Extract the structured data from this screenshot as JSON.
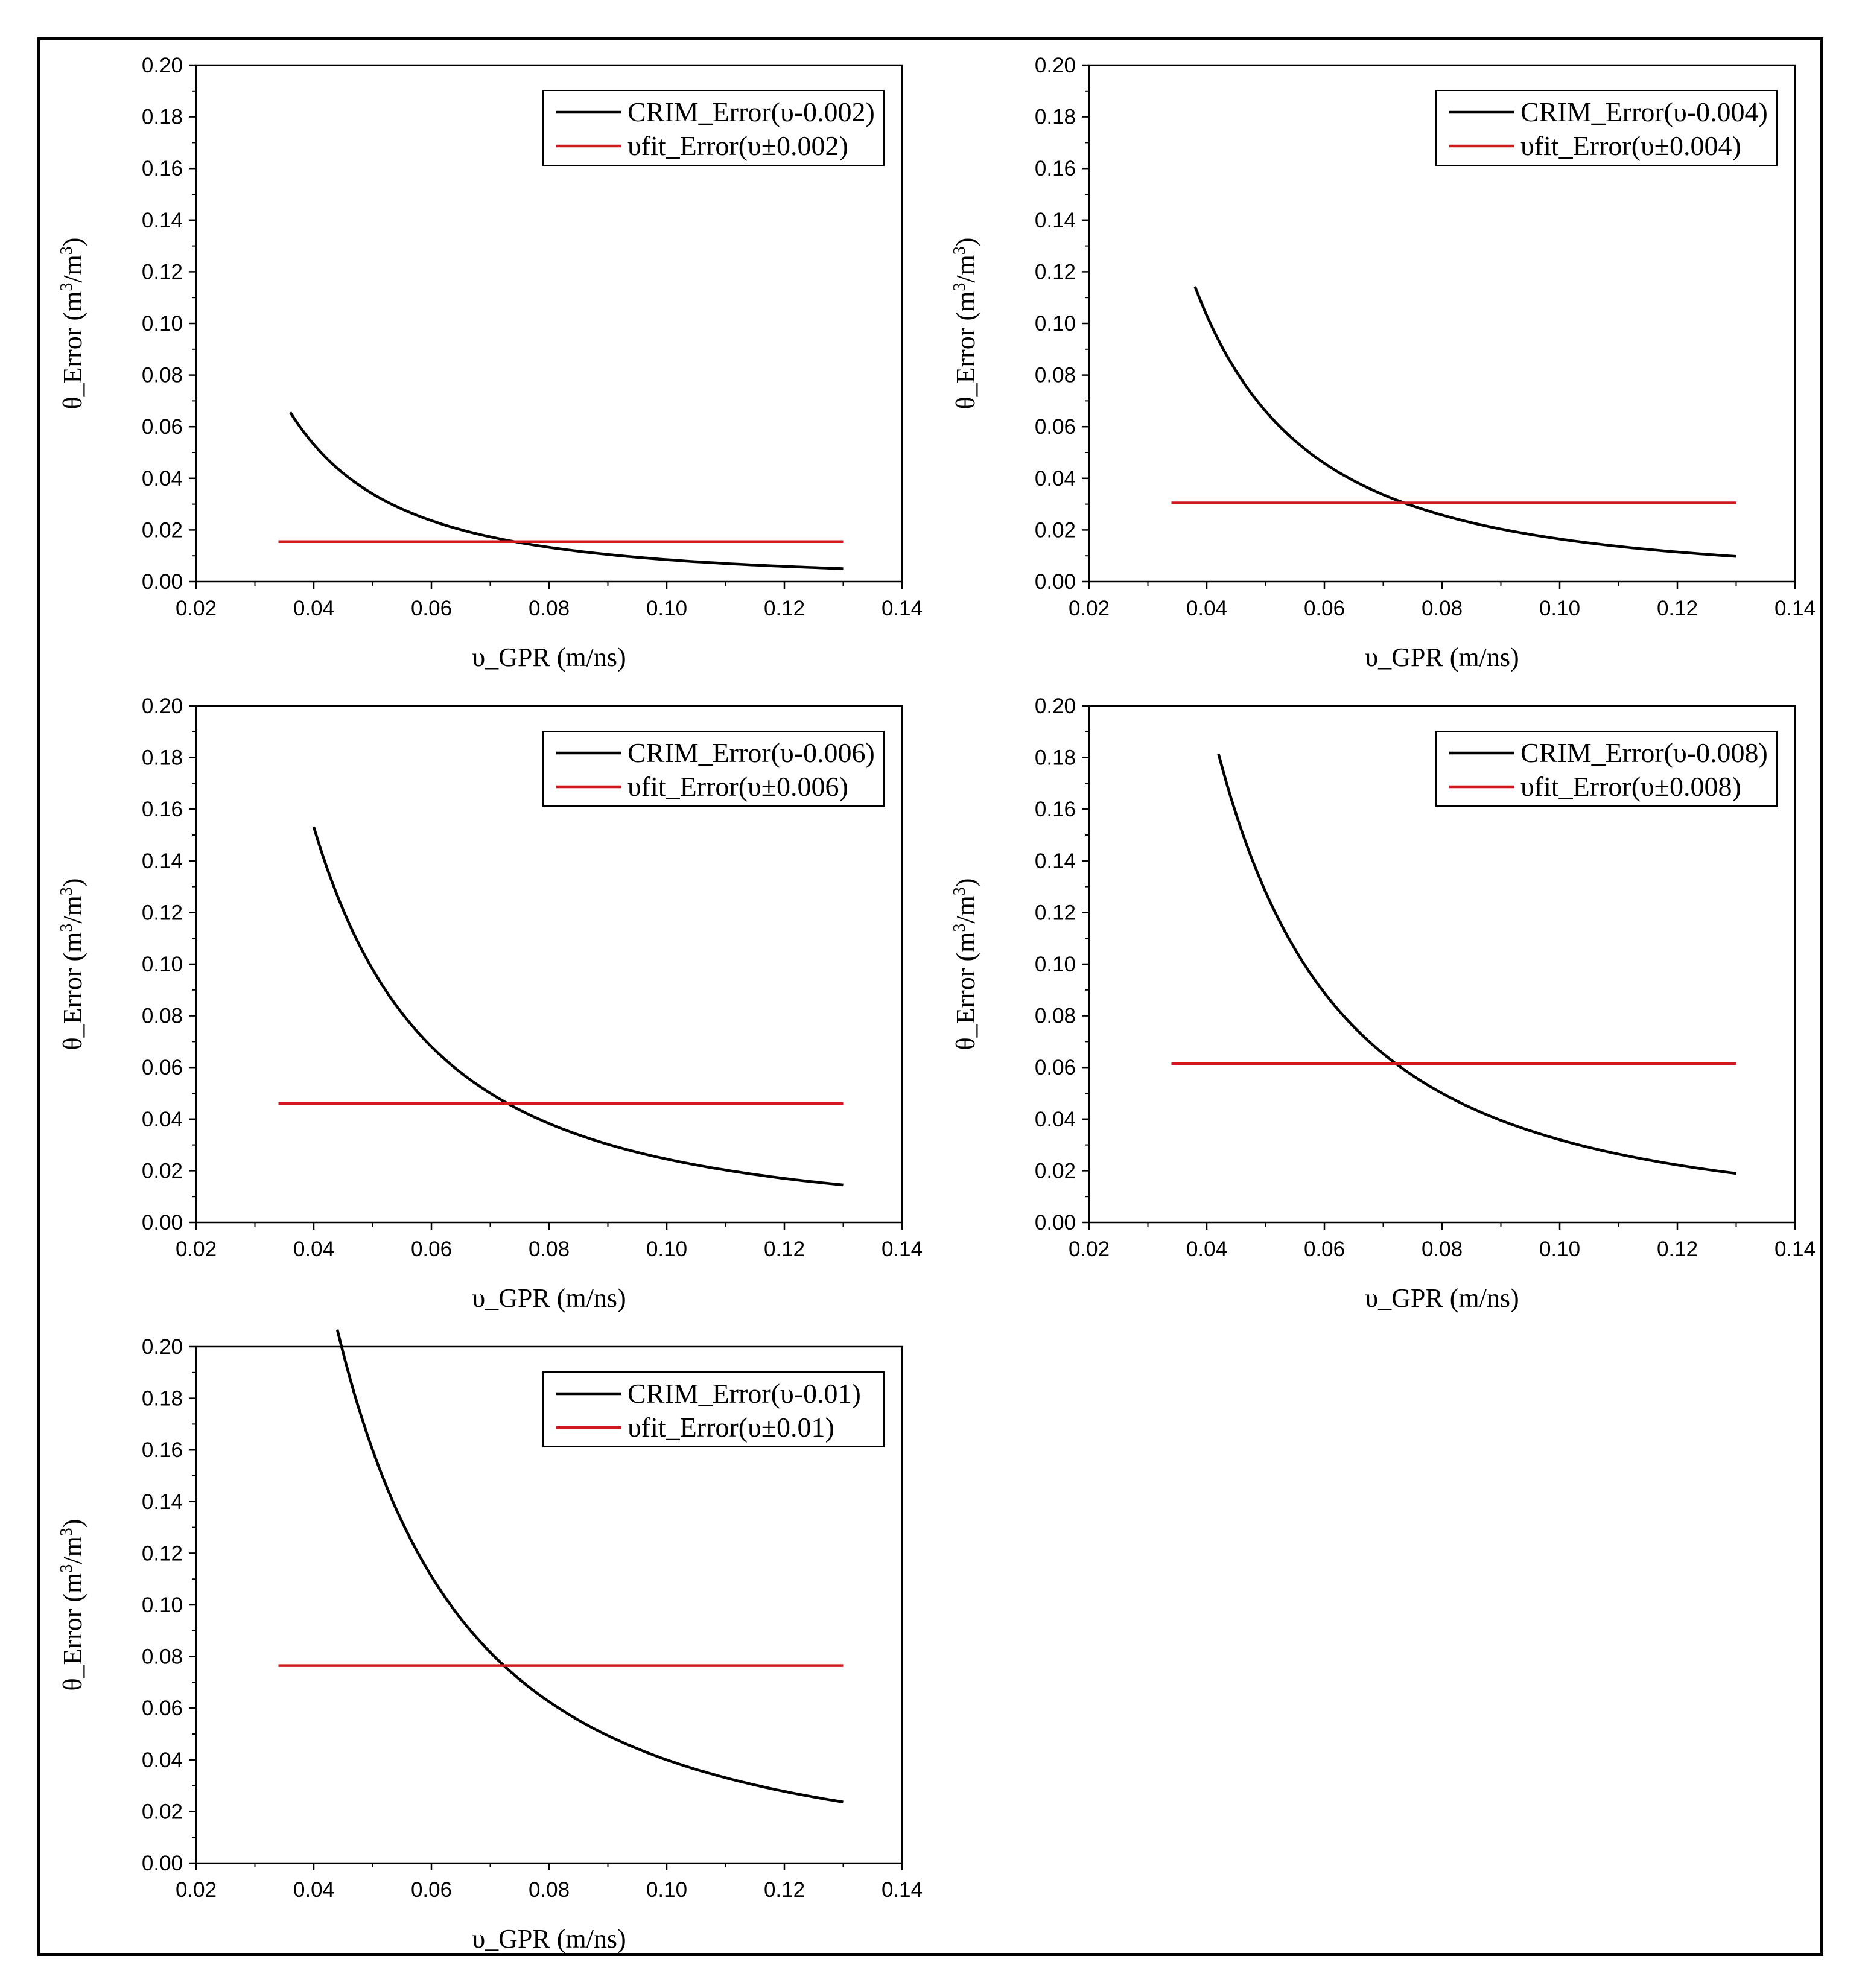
{
  "chart_data": [
    {
      "type": "line",
      "xlabel": "υ_GPR (m/ns)",
      "ylabel": "θ_Error (m³/m³)",
      "ylabel_parts": {
        "prefix": "θ_Error (m",
        "sup1": "3",
        "mid": "/m",
        "sup2": "3",
        "suffix": ")"
      },
      "xlim": [
        0.02,
        0.14
      ],
      "ylim": [
        0.0,
        0.2
      ],
      "x_ticks": [
        "0.02",
        "0.04",
        "0.06",
        "0.08",
        "0.10",
        "0.12",
        "0.14"
      ],
      "y_ticks": [
        "0.00",
        "0.02",
        "0.04",
        "0.06",
        "0.08",
        "0.10",
        "0.12",
        "0.14",
        "0.16",
        "0.18",
        "0.20"
      ],
      "legend_position": "top-right",
      "series": [
        {
          "name": "CRIM_Error(υ-0.002)",
          "color": "#000000",
          "kind": "curve",
          "k": 8.5e-05,
          "x_start": 0.036,
          "x_end": 0.13
        },
        {
          "name": "υfit_Error(υ±0.002)",
          "color": "#d0191f",
          "kind": "constant",
          "value": 0.0155,
          "x_start": 0.034,
          "x_end": 0.13
        }
      ]
    },
    {
      "type": "line",
      "xlabel": "υ_GPR (m/ns)",
      "ylabel": "θ_Error (m³/m³)",
      "ylabel_parts": {
        "prefix": "θ_Error (m",
        "sup1": "3",
        "mid": "/m",
        "sup2": "3",
        "suffix": ")"
      },
      "xlim": [
        0.02,
        0.14
      ],
      "ylim": [
        0.0,
        0.2
      ],
      "x_ticks": [
        "0.02",
        "0.04",
        "0.06",
        "0.08",
        "0.10",
        "0.12",
        "0.14"
      ],
      "y_ticks": [
        "0.00",
        "0.02",
        "0.04",
        "0.06",
        "0.08",
        "0.10",
        "0.12",
        "0.14",
        "0.16",
        "0.18",
        "0.20"
      ],
      "legend_position": "top-right",
      "series": [
        {
          "name": "CRIM_Error(υ-0.004)",
          "color": "#000000",
          "kind": "curve",
          "k": 0.000165,
          "x_start": 0.038,
          "x_end": 0.13
        },
        {
          "name": "υfit_Error(υ±0.004)",
          "color": "#d0191f",
          "kind": "constant",
          "value": 0.0305,
          "x_start": 0.034,
          "x_end": 0.13
        }
      ]
    },
    {
      "type": "line",
      "xlabel": "υ_GPR (m/ns)",
      "ylabel": "θ_Error (m³/m³)",
      "ylabel_parts": {
        "prefix": "θ_Error (m",
        "sup1": "3",
        "mid": "/m",
        "sup2": "3",
        "suffix": ")"
      },
      "xlim": [
        0.02,
        0.14
      ],
      "ylim": [
        0.0,
        0.2
      ],
      "x_ticks": [
        "0.02",
        "0.04",
        "0.06",
        "0.08",
        "0.10",
        "0.12",
        "0.14"
      ],
      "y_ticks": [
        "0.00",
        "0.02",
        "0.04",
        "0.06",
        "0.08",
        "0.10",
        "0.12",
        "0.14",
        "0.16",
        "0.18",
        "0.20"
      ],
      "legend_position": "top-right",
      "series": [
        {
          "name": "CRIM_Error(υ-0.006)",
          "color": "#000000",
          "kind": "curve",
          "k": 0.000245,
          "x_start": 0.04,
          "x_end": 0.13
        },
        {
          "name": "υfit_Error(υ±0.006)",
          "color": "#d0191f",
          "kind": "constant",
          "value": 0.046,
          "x_start": 0.034,
          "x_end": 0.13
        }
      ]
    },
    {
      "type": "line",
      "xlabel": "υ_GPR (m/ns)",
      "ylabel": "θ_Error (m³/m³)",
      "ylabel_parts": {
        "prefix": "θ_Error (m",
        "sup1": "3",
        "mid": "/m",
        "sup2": "3",
        "suffix": ")"
      },
      "xlim": [
        0.02,
        0.14
      ],
      "ylim": [
        0.0,
        0.2
      ],
      "x_ticks": [
        "0.02",
        "0.04",
        "0.06",
        "0.08",
        "0.10",
        "0.12",
        "0.14"
      ],
      "y_ticks": [
        "0.00",
        "0.02",
        "0.04",
        "0.06",
        "0.08",
        "0.10",
        "0.12",
        "0.14",
        "0.16",
        "0.18",
        "0.20"
      ],
      "legend_position": "top-right",
      "series": [
        {
          "name": "CRIM_Error(υ-0.008)",
          "color": "#000000",
          "kind": "curve",
          "k": 0.00032,
          "x_start": 0.042,
          "x_end": 0.13
        },
        {
          "name": "υfit_Error(υ±0.008)",
          "color": "#d0191f",
          "kind": "constant",
          "value": 0.0615,
          "x_start": 0.034,
          "x_end": 0.13
        }
      ]
    },
    {
      "type": "line",
      "xlabel": "υ_GPR (m/ns)",
      "ylabel": "θ_Error (m³/m³)",
      "ylabel_parts": {
        "prefix": "θ_Error (m",
        "sup1": "3",
        "mid": "/m",
        "sup2": "3",
        "suffix": ")"
      },
      "xlim": [
        0.02,
        0.14
      ],
      "ylim": [
        0.0,
        0.2
      ],
      "x_ticks": [
        "0.02",
        "0.04",
        "0.06",
        "0.08",
        "0.10",
        "0.12",
        "0.14"
      ],
      "y_ticks": [
        "0.00",
        "0.02",
        "0.04",
        "0.06",
        "0.08",
        "0.10",
        "0.12",
        "0.14",
        "0.16",
        "0.18",
        "0.20"
      ],
      "legend_position": "top-right",
      "series": [
        {
          "name": "CRIM_Error(υ-0.01)",
          "color": "#000000",
          "kind": "curve",
          "k": 0.0004,
          "x_start": 0.044,
          "x_end": 0.13
        },
        {
          "name": "υfit_Error(υ±0.01)",
          "color": "#d0191f",
          "kind": "constant",
          "value": 0.0765,
          "x_start": 0.034,
          "x_end": 0.13
        }
      ]
    }
  ]
}
